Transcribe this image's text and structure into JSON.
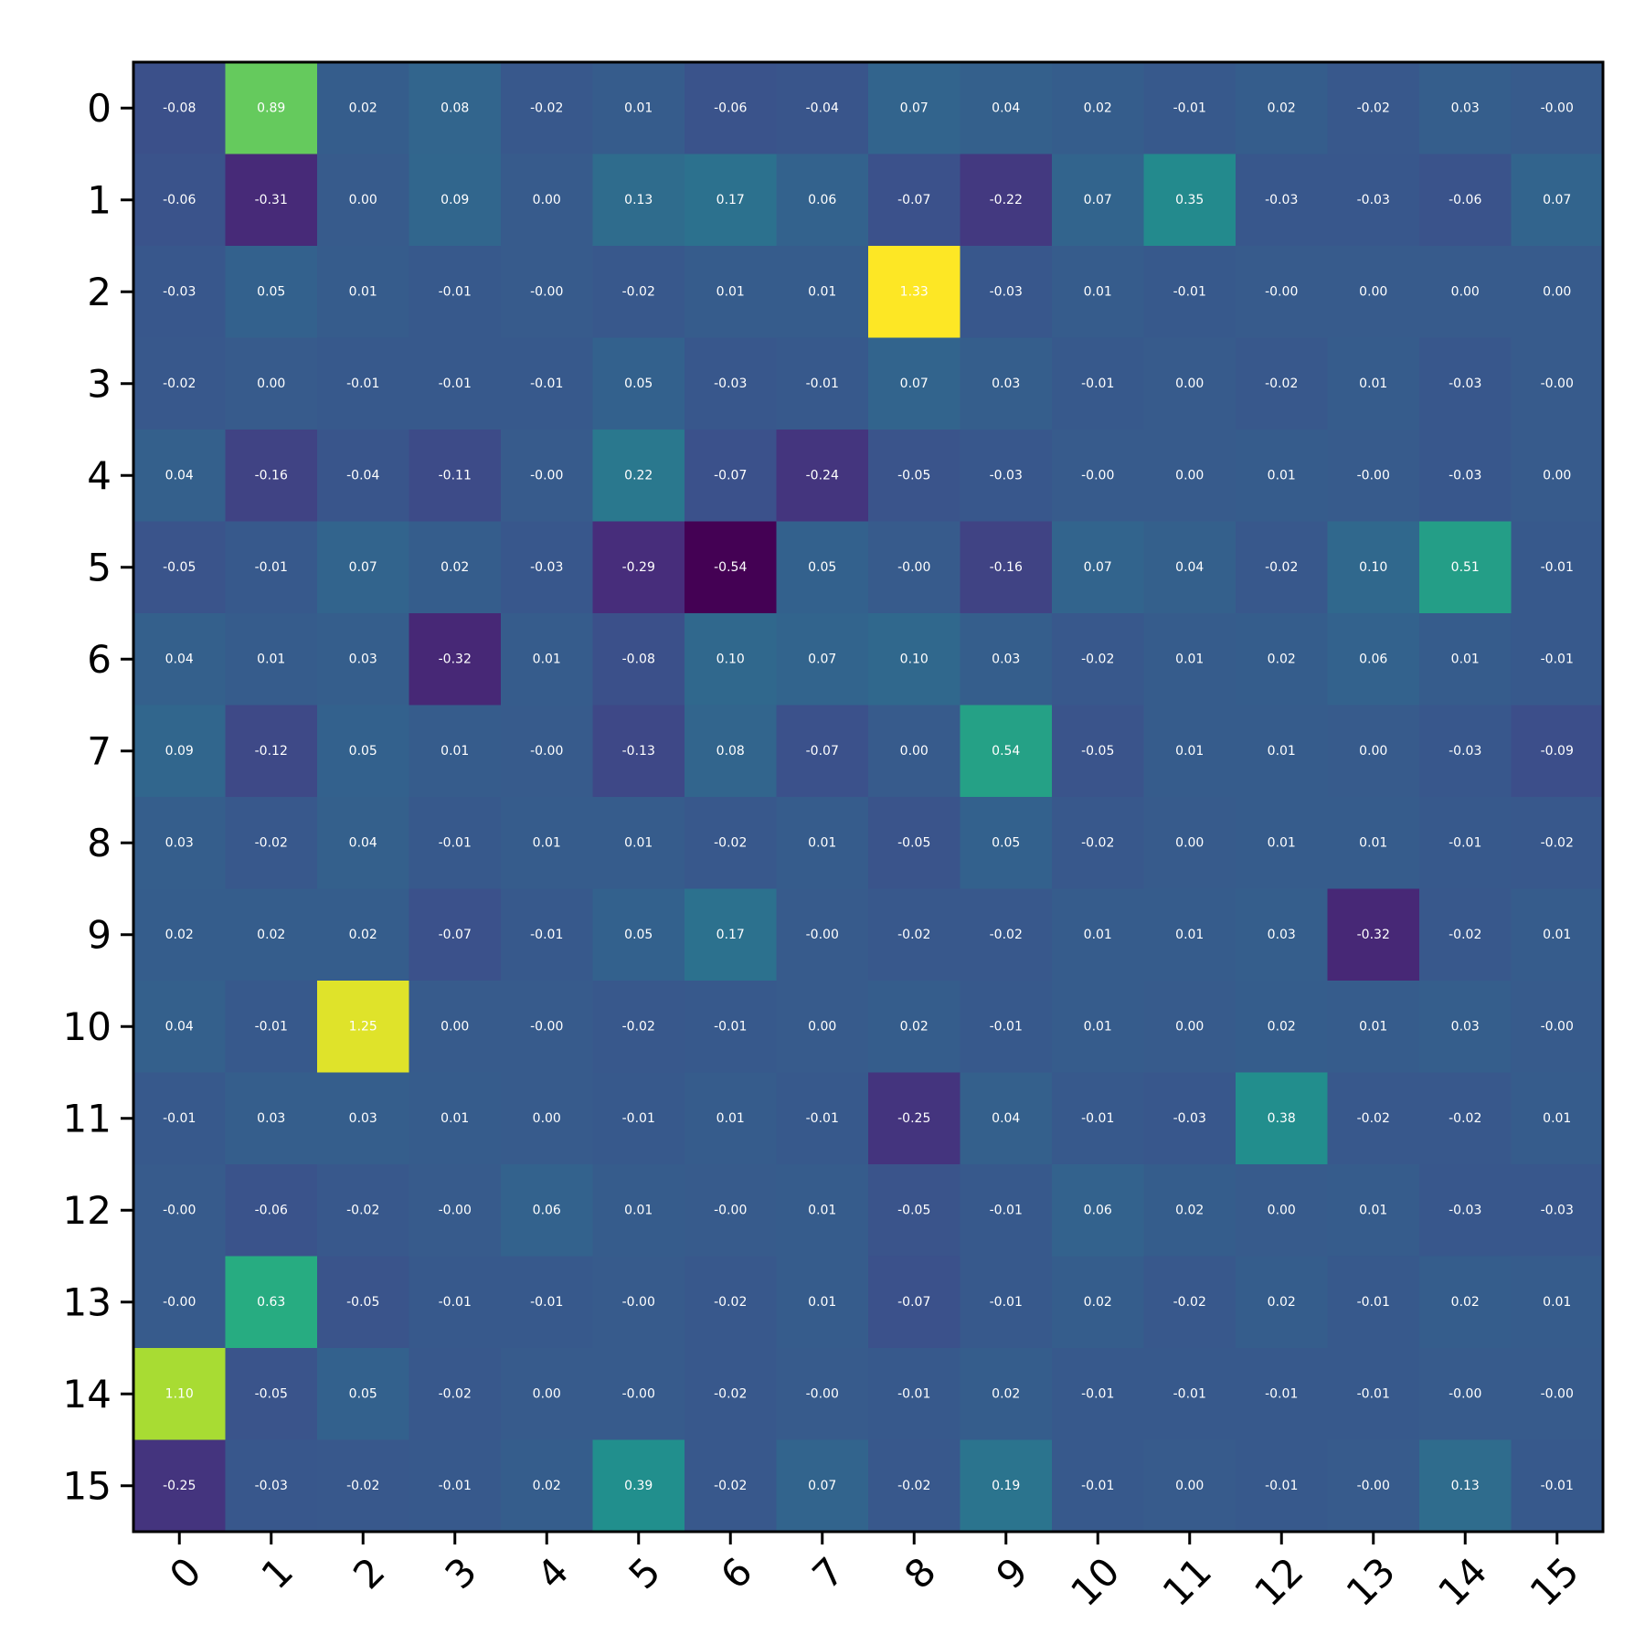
{
  "chart_data": {
    "type": "heatmap",
    "title": "",
    "xlabel": "",
    "ylabel": "",
    "colormap": "viridis",
    "color_range": [
      -0.54,
      1.33
    ],
    "grid": false,
    "x_labels": [
      "0",
      "1",
      "2",
      "3",
      "4",
      "5",
      "6",
      "7",
      "8",
      "9",
      "10",
      "11",
      "12",
      "13",
      "14",
      "15"
    ],
    "y_labels": [
      "0",
      "1",
      "2",
      "3",
      "4",
      "5",
      "6",
      "7",
      "8",
      "9",
      "10",
      "11",
      "12",
      "13",
      "14",
      "15"
    ],
    "values": [
      [
        -0.08,
        0.89,
        0.02,
        0.08,
        -0.02,
        0.01,
        -0.06,
        -0.04,
        0.07,
        0.04,
        0.02,
        -0.01,
        0.02,
        -0.02,
        0.03,
        -0.0
      ],
      [
        -0.06,
        -0.31,
        0.0,
        0.09,
        0.0,
        0.13,
        0.17,
        0.06,
        -0.07,
        -0.22,
        0.07,
        0.35,
        -0.03,
        -0.03,
        -0.06,
        0.07
      ],
      [
        -0.03,
        0.05,
        0.01,
        -0.01,
        -0.0,
        -0.02,
        0.01,
        0.01,
        1.33,
        -0.03,
        0.01,
        -0.01,
        -0.0,
        0.0,
        0.0,
        0.0
      ],
      [
        -0.02,
        0.0,
        -0.01,
        -0.01,
        -0.01,
        0.05,
        -0.03,
        -0.01,
        0.07,
        0.03,
        -0.01,
        0.0,
        -0.02,
        0.01,
        -0.03,
        -0.0
      ],
      [
        0.04,
        -0.16,
        -0.04,
        -0.11,
        -0.0,
        0.22,
        -0.07,
        -0.24,
        -0.05,
        -0.03,
        -0.0,
        0.0,
        0.01,
        -0.0,
        -0.03,
        0.0
      ],
      [
        -0.05,
        -0.01,
        0.07,
        0.02,
        -0.03,
        -0.29,
        -0.54,
        0.05,
        -0.0,
        -0.16,
        0.07,
        0.04,
        -0.02,
        0.1,
        0.51,
        -0.01
      ],
      [
        0.04,
        0.01,
        0.03,
        -0.32,
        0.01,
        -0.08,
        0.1,
        0.07,
        0.1,
        0.03,
        -0.02,
        0.01,
        0.02,
        0.06,
        0.01,
        -0.01
      ],
      [
        0.09,
        -0.12,
        0.05,
        0.01,
        -0.0,
        -0.13,
        0.08,
        -0.07,
        0.0,
        0.54,
        -0.05,
        0.01,
        0.01,
        0.0,
        -0.03,
        -0.09
      ],
      [
        0.03,
        -0.02,
        0.04,
        -0.01,
        0.01,
        0.01,
        -0.02,
        0.01,
        -0.05,
        0.05,
        -0.02,
        0.0,
        0.01,
        0.01,
        -0.01,
        -0.02
      ],
      [
        0.02,
        0.02,
        0.02,
        -0.07,
        -0.01,
        0.05,
        0.17,
        -0.0,
        -0.02,
        -0.02,
        0.01,
        0.01,
        0.03,
        -0.32,
        -0.02,
        0.01
      ],
      [
        0.04,
        -0.01,
        1.25,
        0.0,
        -0.0,
        -0.02,
        -0.01,
        0.0,
        0.02,
        -0.01,
        0.01,
        0.0,
        0.02,
        0.01,
        0.03,
        -0.0
      ],
      [
        -0.01,
        0.03,
        0.03,
        0.01,
        0.0,
        -0.01,
        0.01,
        -0.01,
        -0.25,
        0.04,
        -0.01,
        -0.03,
        0.38,
        -0.02,
        -0.02,
        0.01
      ],
      [
        -0.0,
        -0.06,
        -0.02,
        -0.0,
        0.06,
        0.01,
        -0.0,
        0.01,
        -0.05,
        -0.01,
        0.06,
        0.02,
        0.0,
        0.01,
        -0.03,
        -0.03
      ],
      [
        -0.0,
        0.63,
        -0.05,
        -0.01,
        -0.01,
        -0.0,
        -0.02,
        0.01,
        -0.07,
        -0.01,
        0.02,
        -0.02,
        0.02,
        -0.01,
        0.02,
        0.01
      ],
      [
        1.1,
        -0.05,
        0.05,
        -0.02,
        0.0,
        -0.0,
        -0.02,
        -0.0,
        -0.01,
        0.02,
        -0.01,
        -0.01,
        -0.01,
        -0.01,
        -0.0,
        -0.0
      ],
      [
        -0.25,
        -0.03,
        -0.02,
        -0.01,
        0.02,
        0.39,
        -0.02,
        0.07,
        -0.02,
        0.19,
        -0.01,
        0.0,
        -0.01,
        -0.0,
        0.13,
        -0.01
      ]
    ]
  }
}
